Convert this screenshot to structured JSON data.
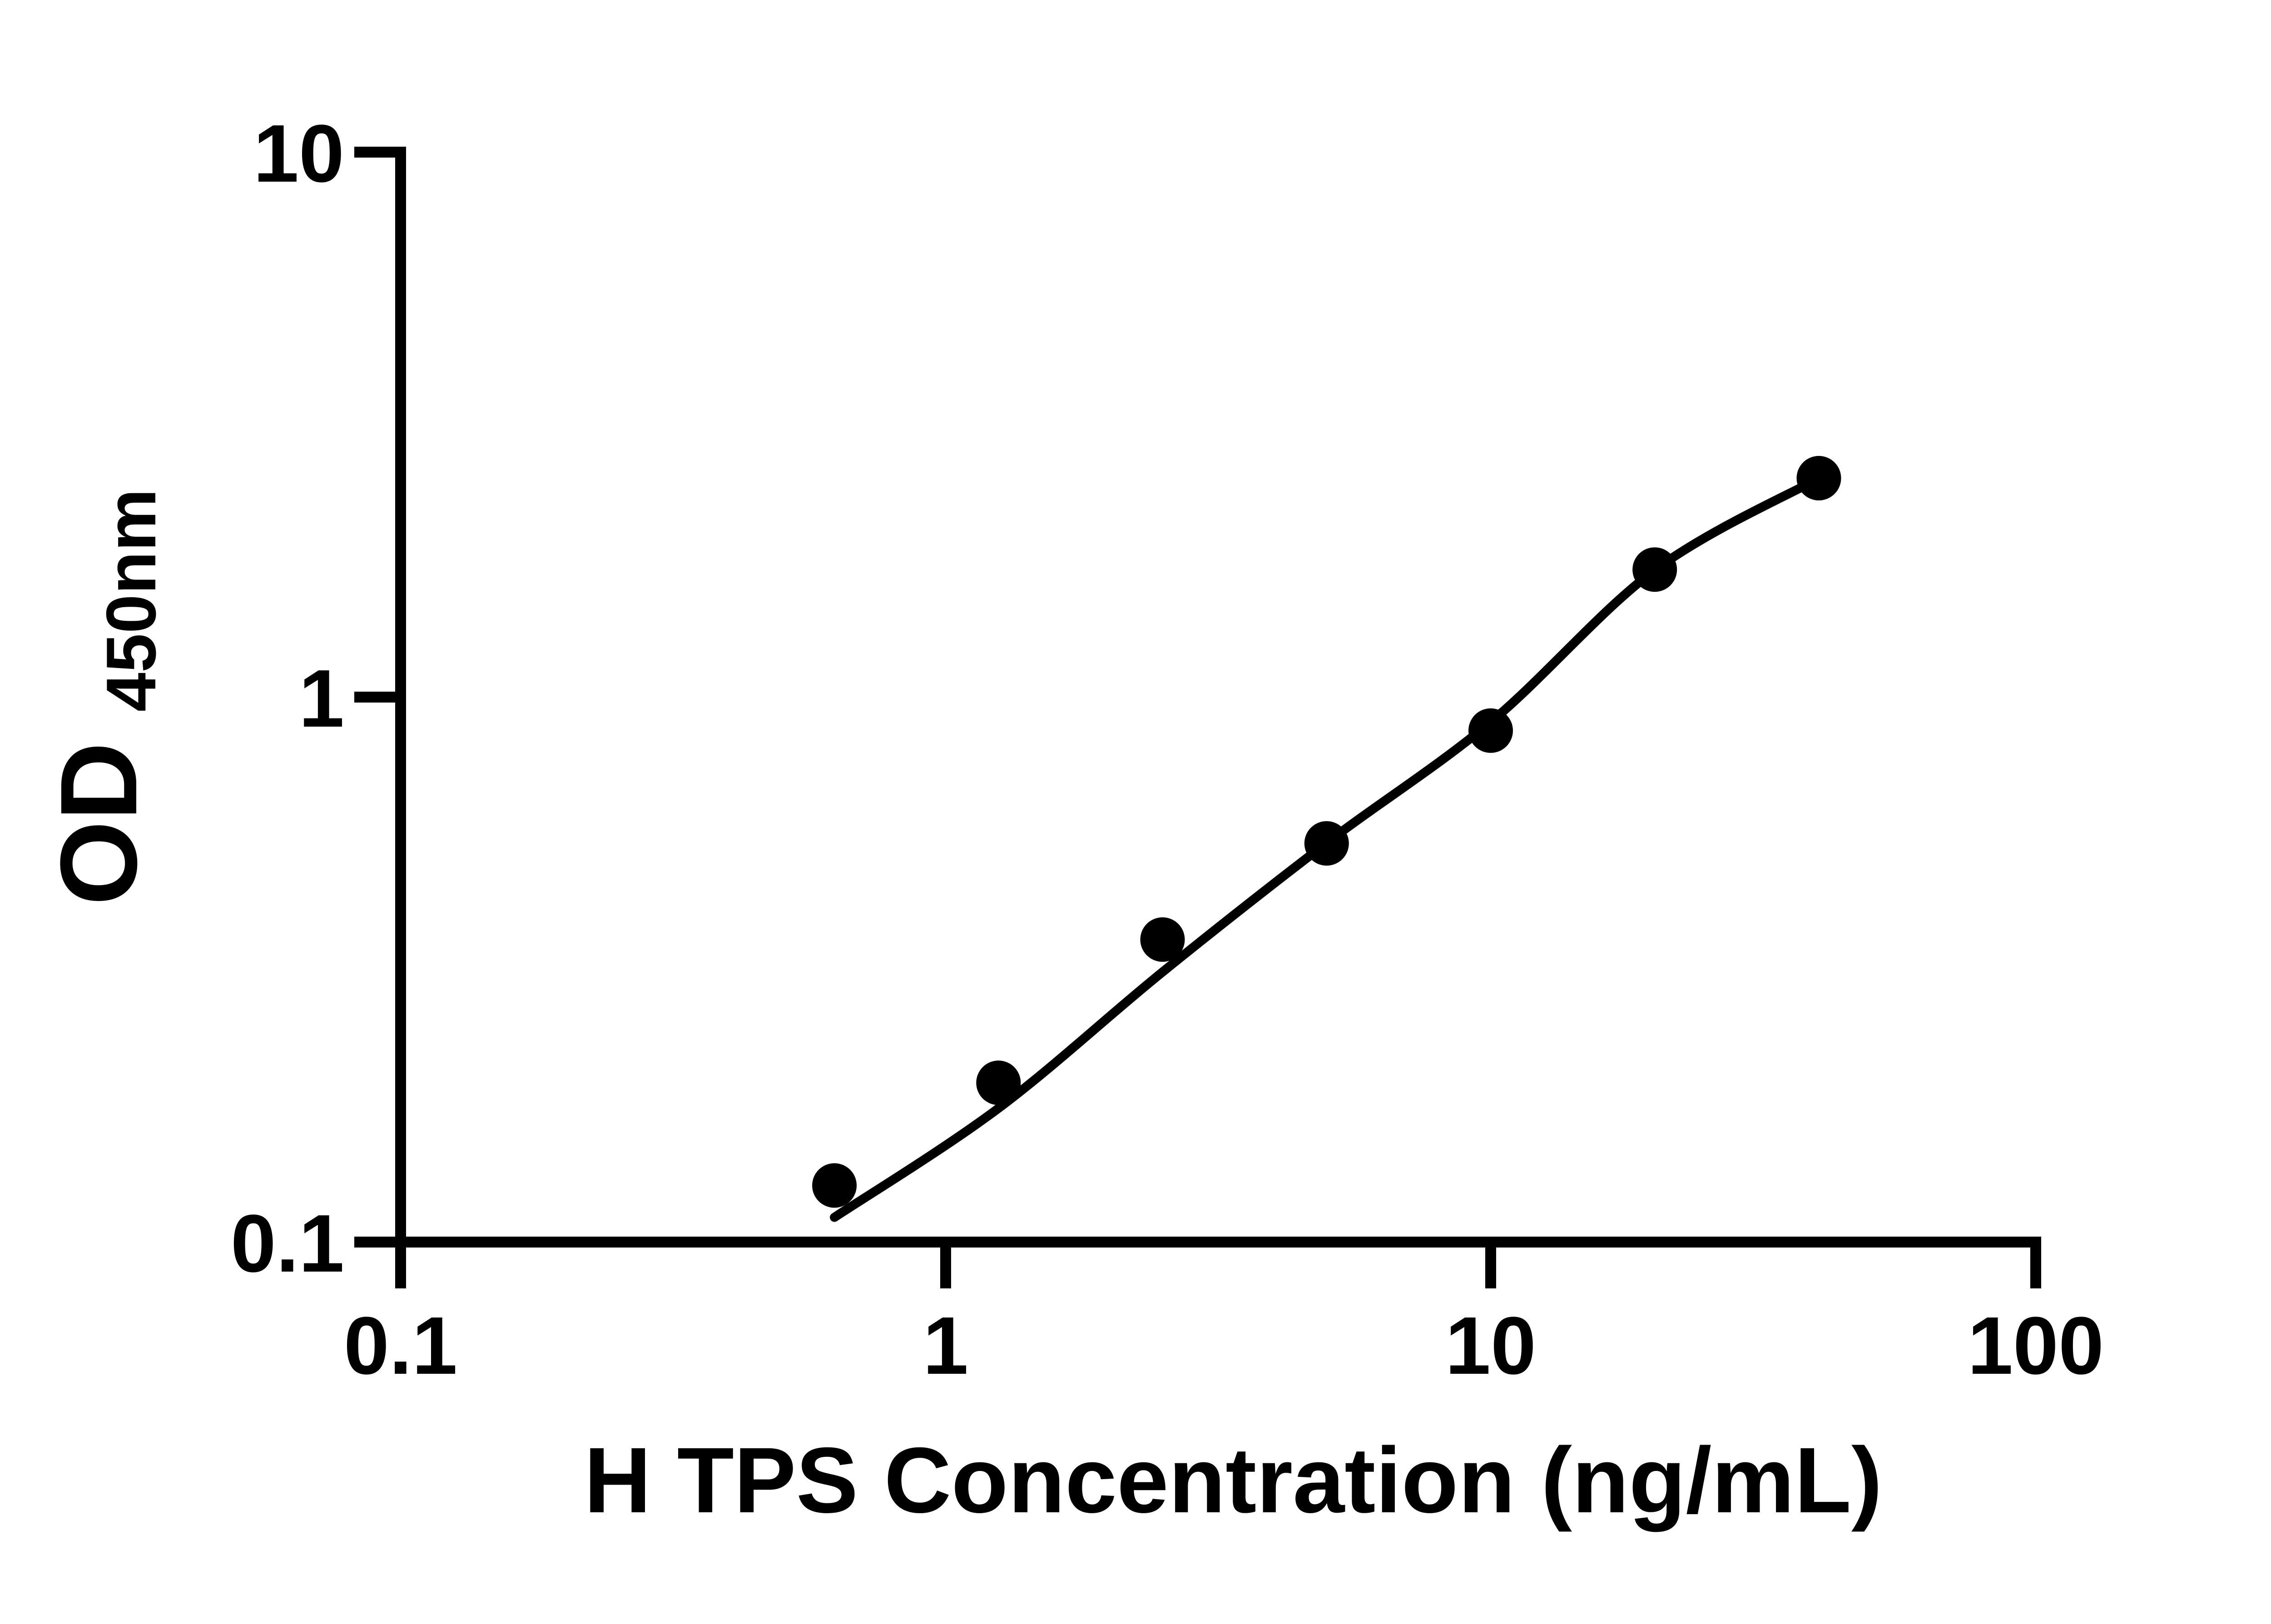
{
  "page": {
    "background_color": "#ffffff",
    "ink_color": "#000000"
  },
  "chart_data": {
    "type": "scatter",
    "title": "",
    "xlabel": "H TPS Concentration (ng/mL)",
    "ylabel": "OD",
    "ylabel_subscript": "450nm",
    "x_scale": "log",
    "y_scale": "log",
    "xlim": [
      0.1,
      100
    ],
    "ylim": [
      0.1,
      10
    ],
    "x_ticks": [
      0.1,
      1,
      10,
      100
    ],
    "y_ticks": [
      10,
      1,
      0.1
    ],
    "grid": false,
    "legend": false,
    "marker": {
      "shape": "circle",
      "color": "#000000"
    },
    "curve_color": "#000000",
    "points": [
      {
        "x": 0.625,
        "y": 0.127
      },
      {
        "x": 1.25,
        "y": 0.196
      },
      {
        "x": 2.5,
        "y": 0.359
      },
      {
        "x": 5,
        "y": 0.539
      },
      {
        "x": 10,
        "y": 0.868
      },
      {
        "x": 20,
        "y": 1.714
      },
      {
        "x": 40,
        "y": 2.522
      }
    ],
    "fit_curve": [
      {
        "x": 0.625,
        "y": 0.111
      },
      {
        "x": 1.25,
        "y": 0.176
      },
      {
        "x": 2.5,
        "y": 0.313
      },
      {
        "x": 5,
        "y": 0.54
      },
      {
        "x": 10,
        "y": 0.9
      },
      {
        "x": 20,
        "y": 1.71
      },
      {
        "x": 40,
        "y": 2.52
      }
    ]
  }
}
